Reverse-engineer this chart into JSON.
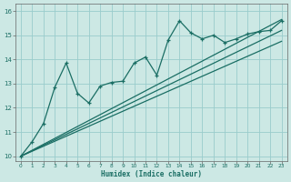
{
  "title": "",
  "xlabel": "Humidex (Indice chaleur)",
  "ylabel": "",
  "bg_color": "#cce8e4",
  "line_color": "#1a6e64",
  "grid_color": "#99cccc",
  "xlim": [
    -0.5,
    23.5
  ],
  "ylim": [
    9.8,
    16.3
  ],
  "xticks": [
    0,
    1,
    2,
    3,
    4,
    5,
    6,
    7,
    8,
    9,
    10,
    11,
    12,
    13,
    14,
    15,
    16,
    17,
    18,
    19,
    20,
    21,
    22,
    23
  ],
  "yticks": [
    10,
    11,
    12,
    13,
    14,
    15,
    16
  ],
  "main_line_x": [
    0,
    1,
    2,
    3,
    4,
    5,
    6,
    7,
    8,
    9,
    10,
    11,
    12,
    13,
    14,
    15,
    16,
    17,
    18,
    19,
    20,
    21,
    22,
    23
  ],
  "main_line_y": [
    10.0,
    10.6,
    11.35,
    12.85,
    13.85,
    12.6,
    12.2,
    12.9,
    13.05,
    13.1,
    13.85,
    14.1,
    13.35,
    14.8,
    15.6,
    15.1,
    14.85,
    15.0,
    14.7,
    14.85,
    15.05,
    15.15,
    15.2,
    15.6
  ],
  "trend_line1_x": [
    0,
    23
  ],
  "trend_line1_y": [
    10.0,
    15.65
  ],
  "trend_line2_x": [
    0,
    23
  ],
  "trend_line2_y": [
    10.0,
    14.75
  ],
  "trend_line3_x": [
    0,
    23
  ],
  "trend_line3_y": [
    10.0,
    15.2
  ]
}
